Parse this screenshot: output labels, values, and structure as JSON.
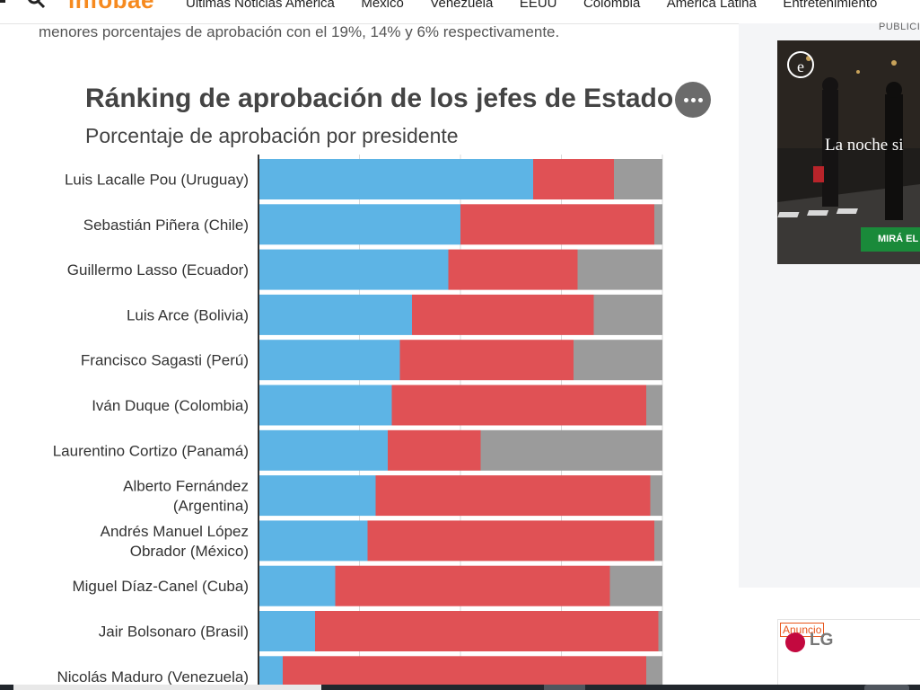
{
  "nav": {
    "logo": "infobae",
    "items": [
      "Últimas Noticias América",
      "México",
      "Venezuela",
      "EEUU",
      "Colombia",
      "América Latina",
      "Entretenimiento"
    ]
  },
  "article": {
    "intro_text": "menores porcentajes de aprobación con el 19%, 14% y 6% respectivamente."
  },
  "sidebar": {
    "pub_label": "PUBLICIDAD",
    "ad_headline": "La noche si",
    "ad_cta": "MIRÁ EL V",
    "ad_logo_letter": "e",
    "anuncio_label": "Anuncio",
    "lg_label": "LG"
  },
  "colors": {
    "approve": "#5db4e5",
    "disapprove": "#e05155",
    "other": "#9b9b9b",
    "brand": "#f68a1f"
  },
  "chart_data": {
    "type": "bar",
    "stacked": true,
    "orientation": "horizontal",
    "title": "Ránking de aprobación de los jefes de Estado",
    "subtitle": "Porcentaje de aprobación por presidente",
    "xlim": [
      0,
      100
    ],
    "grid": true,
    "categories": [
      "Luis Lacalle Pou (Uruguay)",
      "Sebastián Piñera (Chile)",
      "Guillermo Lasso (Ecuador)",
      "Luis Arce (Bolivia)",
      "Francisco Sagasti (Perú)",
      "Iván Duque (Colombia)",
      "Laurentino Cortizo (Panamá)",
      "Alberto Fernández (Argentina)",
      "Andrés Manuel López Obrador (México)",
      "Miguel Díaz-Canel (Cuba)",
      "Jair Bolsonaro (Brasil)",
      "Nicolás Maduro (Venezuela)"
    ],
    "category_lines": [
      [
        "Luis Lacalle Pou (Uruguay)"
      ],
      [
        "Sebastián Piñera (Chile)"
      ],
      [
        "Guillermo Lasso (Ecuador)"
      ],
      [
        "Luis Arce (Bolivia)"
      ],
      [
        "Francisco Sagasti (Perú)"
      ],
      [
        "Iván Duque (Colombia)"
      ],
      [
        "Laurentino Cortizo (Panamá)"
      ],
      [
        "Alberto Fernández",
        "(Argentina)"
      ],
      [
        "Andrés Manuel López",
        "Obrador (México)"
      ],
      [
        "Miguel Díaz-Canel (Cuba)"
      ],
      [
        "Jair Bolsonaro (Brasil)"
      ],
      [
        "Nicolás Maduro (Venezuela)"
      ]
    ],
    "series": [
      {
        "key": "approve",
        "values": [
          68,
          50,
          47,
          38,
          35,
          33,
          32,
          29,
          27,
          19,
          14,
          6
        ]
      },
      {
        "key": "disapprove",
        "values": [
          20,
          48,
          32,
          45,
          43,
          63,
          23,
          68,
          71,
          68,
          85,
          90
        ]
      },
      {
        "key": "other",
        "values": [
          12,
          2,
          21,
          17,
          22,
          4,
          45,
          3,
          2,
          13,
          1,
          4
        ]
      }
    ]
  }
}
